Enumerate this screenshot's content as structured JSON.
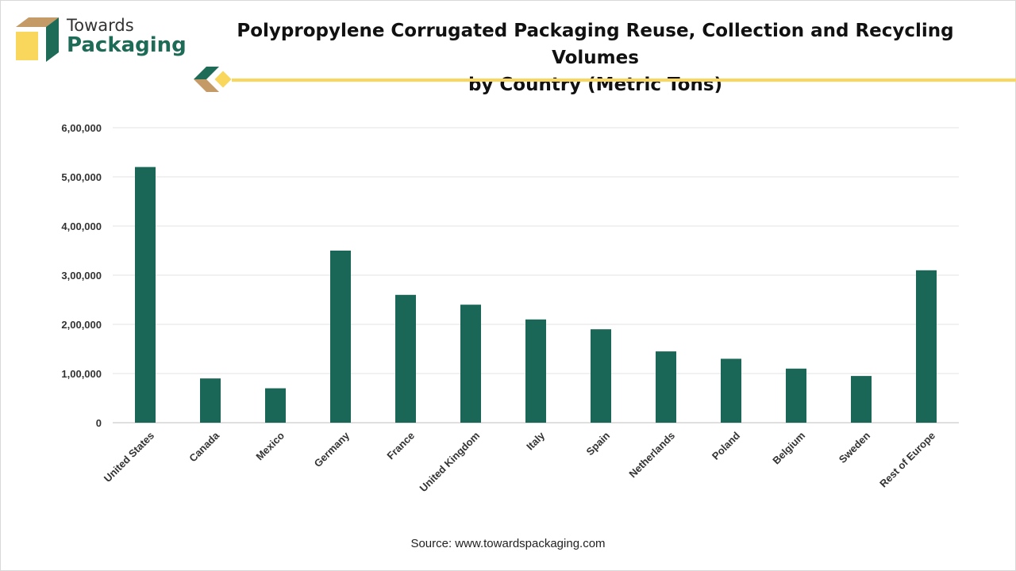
{
  "brand": {
    "line1": "Towards",
    "line2": "Packaging"
  },
  "colors": {
    "bar": "#1a6657",
    "brand_green": "#1e6b57",
    "brand_yellow": "#f9d65c",
    "brand_tan": "#c49a66"
  },
  "source": "Source: www.towardspackaging.com",
  "chart_data": {
    "type": "bar",
    "title": "Polypropylene Corrugated Packaging Reuse, Collection and Recycling Volumes by Country (Metric Tons)",
    "title_lines": [
      "Polypropylene Corrugated Packaging Reuse, Collection and Recycling Volumes",
      "by Country (Metric Tons)"
    ],
    "xlabel": "",
    "ylabel": "",
    "ylim": [
      0,
      600000
    ],
    "yticks": [
      0,
      100000,
      200000,
      300000,
      400000,
      500000,
      600000
    ],
    "ytick_labels": [
      "0",
      "1,00,000",
      "2,00,000",
      "3,00,000",
      "4,00,000",
      "5,00,000",
      "6,00,000"
    ],
    "grid": true,
    "categories": [
      "United States",
      "Canada",
      "Mexico",
      "Germany",
      "France",
      "United Kingdom",
      "Italy",
      "Spain",
      "Netherlands",
      "Poland",
      "Belgium",
      "Sweden",
      "Rest of Europe"
    ],
    "values": [
      520000,
      90000,
      70000,
      350000,
      260000,
      240000,
      210000,
      190000,
      145000,
      130000,
      110000,
      95000,
      310000
    ]
  }
}
